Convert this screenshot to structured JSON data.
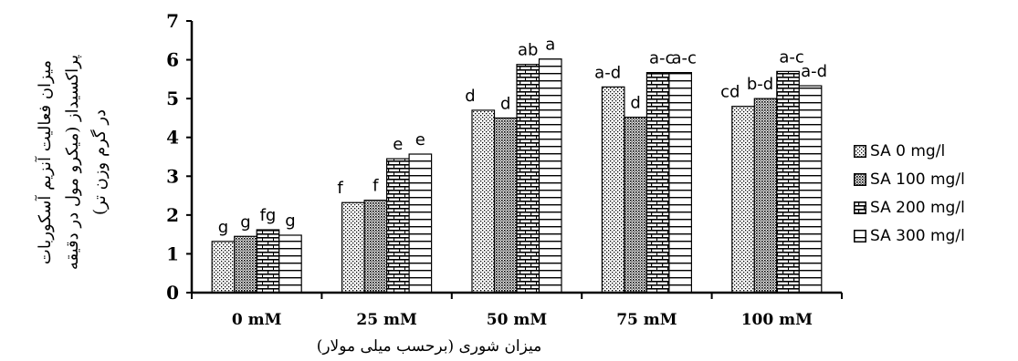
{
  "chart_data": {
    "type": "bar",
    "title": "",
    "xlabel": "میزان شوری (برحسب میلی مولار)",
    "ylabel_lines": [
      "میزان فعالیت آنزیم آسکوربات",
      "پراکسیداز (میکرو مول در دقیقه",
      "در گرم وزن تر)"
    ],
    "categories": [
      "0 mM",
      "25 mM",
      "50 mM",
      "75 mM",
      "100 mM"
    ],
    "ylim": [
      0,
      7
    ],
    "yticks": [
      "0",
      "1",
      "2",
      "3",
      "4",
      "5",
      "6",
      "7"
    ],
    "grid": false,
    "legend_position": "right",
    "series": [
      {
        "name": "SA 0 mg/l",
        "pattern": "dots-sparse",
        "values": [
          1.32,
          2.32,
          4.7,
          5.3,
          4.8
        ],
        "labels": [
          "g",
          "f",
          "d",
          "a-d",
          "cd"
        ]
      },
      {
        "name": "SA 100 mg/l",
        "pattern": "dots-dense",
        "values": [
          1.45,
          2.38,
          4.5,
          4.52,
          5.0
        ],
        "labels": [
          "g",
          "f",
          "d",
          "d",
          "b-d"
        ]
      },
      {
        "name": "SA 200 mg/l",
        "pattern": "brick",
        "values": [
          1.62,
          3.45,
          5.88,
          5.67,
          5.7
        ],
        "labels": [
          "fg",
          "e",
          "ab",
          "a-c",
          "a-c"
        ]
      },
      {
        "name": "SA 300 mg/l",
        "pattern": "hlines",
        "values": [
          1.48,
          3.57,
          6.02,
          5.67,
          5.33
        ],
        "labels": [
          "g",
          "e",
          "a",
          "a-c",
          "a-d"
        ]
      }
    ]
  }
}
